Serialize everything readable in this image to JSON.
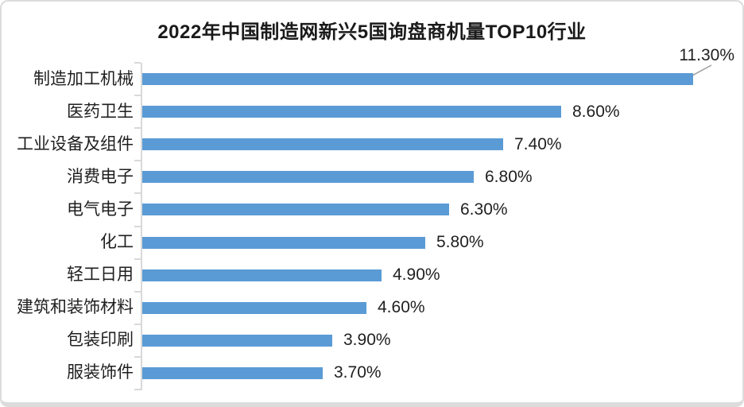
{
  "title": "2022年中国制造网新兴5国询盘商机量TOP10行业",
  "colors": {
    "bar": "#5B9BD5",
    "axis_line": "#D9D9D9",
    "text": "#1F1F1F",
    "callout_line": "#A6A6A6",
    "card_border": "#DCDCDC",
    "background": "#FFFFFF"
  },
  "chart_data": {
    "type": "bar",
    "orientation": "horizontal",
    "title": "2022年中国制造网新兴5国询盘商机量TOP10行业",
    "categories": [
      "制造加工机械",
      "医药卫生",
      "工业设备及组件",
      "消费电子",
      "电气电子",
      "化工",
      "轻工日用",
      "建筑和装饰材料",
      "包装印刷",
      "服装饰件"
    ],
    "values": [
      11.3,
      8.6,
      7.4,
      6.8,
      6.3,
      5.8,
      4.9,
      4.6,
      3.9,
      3.7
    ],
    "value_labels": [
      "11.30%",
      "8.60%",
      "7.40%",
      "6.80%",
      "6.30%",
      "5.80%",
      "4.90%",
      "4.60%",
      "3.90%",
      "3.70%"
    ],
    "unit": "%",
    "xlim": [
      0,
      12
    ],
    "grid": false,
    "legend_position": "none",
    "value_label_position": "outside-end",
    "callout": {
      "category": "制造加工机械",
      "label": "11.30%"
    }
  }
}
